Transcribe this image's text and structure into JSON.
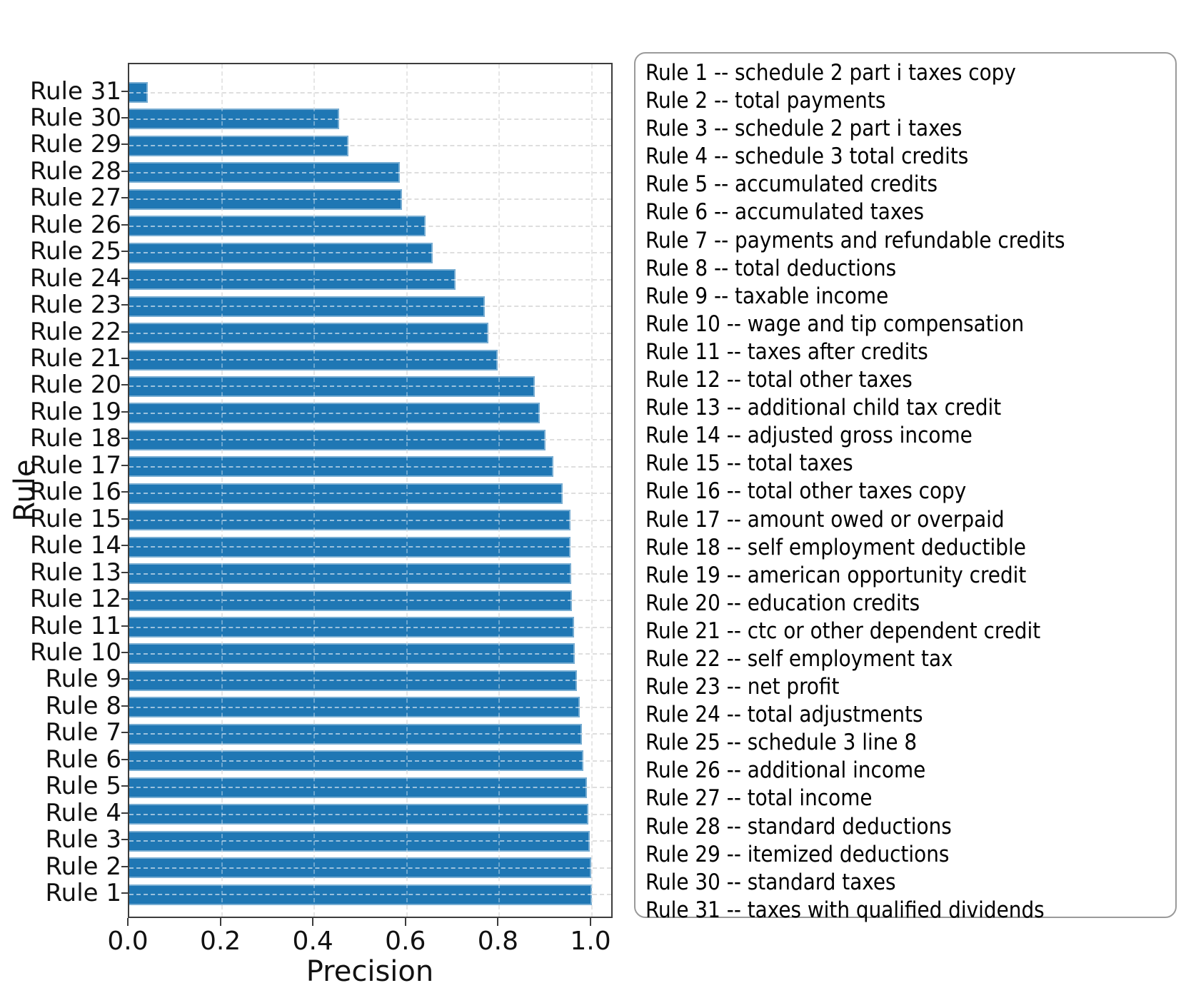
{
  "chart_data": {
    "type": "bar",
    "orientation": "horizontal",
    "title": "",
    "xlabel": "Precision",
    "ylabel": "Rule",
    "xlim": [
      0.0,
      1.048
    ],
    "xticks": [
      "0.0",
      "0.2",
      "0.4",
      "0.6",
      "0.8",
      "1.0"
    ],
    "xtick_values": [
      0.0,
      0.2,
      0.4,
      0.6,
      0.8,
      1.0
    ],
    "grid": "on",
    "bar_color": "#1f77b4",
    "categories_top_to_bottom": [
      "Rule 31",
      "Rule 30",
      "Rule 29",
      "Rule 28",
      "Rule 27",
      "Rule 26",
      "Rule 25",
      "Rule 24",
      "Rule 23",
      "Rule 22",
      "Rule 21",
      "Rule 20",
      "Rule 19",
      "Rule 18",
      "Rule 17",
      "Rule 16",
      "Rule 15",
      "Rule 14",
      "Rule 13",
      "Rule 12",
      "Rule 11",
      "Rule 10",
      "Rule 9",
      "Rule 8",
      "Rule 7",
      "Rule 6",
      "Rule 5",
      "Rule 4",
      "Rule 3",
      "Rule 2",
      "Rule 1"
    ],
    "values_top_to_bottom": [
      0.04,
      0.454,
      0.473,
      0.585,
      0.59,
      0.64,
      0.656,
      0.705,
      0.768,
      0.777,
      0.796,
      0.876,
      0.887,
      0.899,
      0.916,
      0.937,
      0.953,
      0.953,
      0.956,
      0.957,
      0.961,
      0.963,
      0.968,
      0.974,
      0.978,
      0.981,
      0.989,
      0.992,
      0.996,
      0.998,
      1.0
    ],
    "legend_position": "right",
    "legend_separator": "--",
    "legend_entries": [
      {
        "rule": "Rule 1",
        "desc": "schedule 2 part i taxes copy"
      },
      {
        "rule": "Rule 2",
        "desc": "total payments"
      },
      {
        "rule": "Rule 3",
        "desc": "schedule 2 part i taxes"
      },
      {
        "rule": "Rule 4",
        "desc": "schedule 3 total credits"
      },
      {
        "rule": "Rule 5",
        "desc": "accumulated credits"
      },
      {
        "rule": "Rule 6",
        "desc": "accumulated taxes"
      },
      {
        "rule": "Rule 7",
        "desc": "payments and refundable credits"
      },
      {
        "rule": "Rule 8",
        "desc": "total deductions"
      },
      {
        "rule": "Rule 9",
        "desc": "taxable income"
      },
      {
        "rule": "Rule 10",
        "desc": "wage and tip compensation"
      },
      {
        "rule": "Rule 11",
        "desc": "taxes after credits"
      },
      {
        "rule": "Rule 12",
        "desc": "total other taxes"
      },
      {
        "rule": "Rule 13",
        "desc": "additional child tax credit"
      },
      {
        "rule": "Rule 14",
        "desc": "adjusted gross income"
      },
      {
        "rule": "Rule 15",
        "desc": "total taxes"
      },
      {
        "rule": "Rule 16",
        "desc": "total other taxes copy"
      },
      {
        "rule": "Rule 17",
        "desc": "amount owed or overpaid"
      },
      {
        "rule": "Rule 18",
        "desc": "self employment deductible"
      },
      {
        "rule": "Rule 19",
        "desc": "american opportunity credit"
      },
      {
        "rule": "Rule 20",
        "desc": "education credits"
      },
      {
        "rule": "Rule 21",
        "desc": "ctc or other dependent credit"
      },
      {
        "rule": "Rule 22",
        "desc": "self employment tax"
      },
      {
        "rule": "Rule 23",
        "desc": "net profit"
      },
      {
        "rule": "Rule 24",
        "desc": "total adjustments"
      },
      {
        "rule": "Rule 25",
        "desc": "schedule 3 line 8"
      },
      {
        "rule": "Rule 26",
        "desc": "additional income"
      },
      {
        "rule": "Rule 27",
        "desc": "total income"
      },
      {
        "rule": "Rule 28",
        "desc": "standard deductions"
      },
      {
        "rule": "Rule 29",
        "desc": "itemized deductions"
      },
      {
        "rule": "Rule 30",
        "desc": "standard taxes"
      },
      {
        "rule": "Rule 31",
        "desc": "taxes with qualified dividends"
      }
    ]
  }
}
